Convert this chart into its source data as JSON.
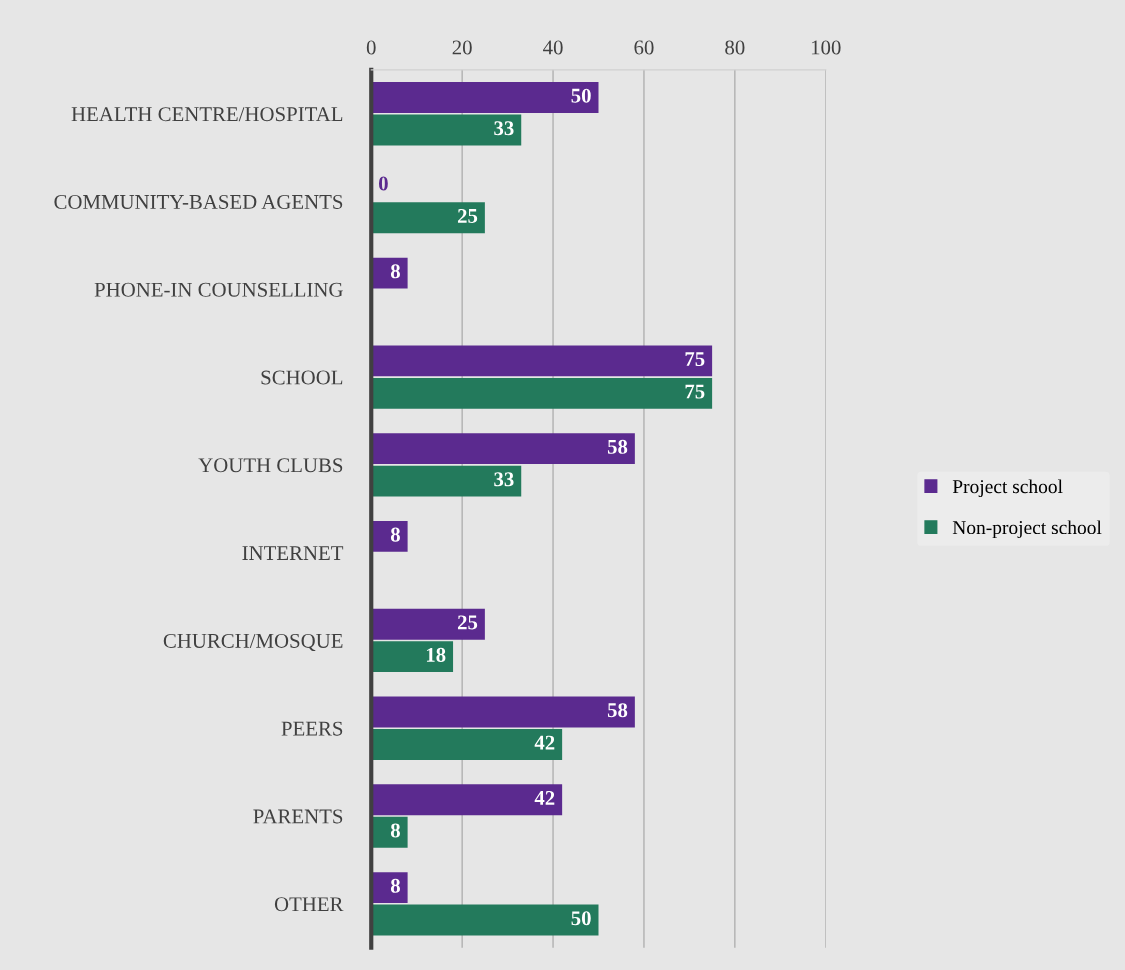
{
  "chart_data": {
    "type": "bar",
    "orientation": "horizontal",
    "categories": [
      "HEALTH CENTRE/HOSPITAL",
      "COMMUNITY-BASED AGENTS",
      "PHONE-IN COUNSELLING",
      "SCHOOL",
      "YOUTH CLUBS",
      "INTERNET",
      "CHURCH/MOSQUE",
      "PEERS",
      "PARENTS",
      "OTHER"
    ],
    "series": [
      {
        "name": "Project school",
        "color": "#5b2a8f",
        "values": [
          50,
          0,
          8,
          75,
          58,
          8,
          25,
          58,
          42,
          8
        ]
      },
      {
        "name": "Non-project school",
        "color": "#237a5c",
        "values": [
          33,
          25,
          null,
          75,
          33,
          null,
          18,
          42,
          8,
          50
        ]
      }
    ],
    "xlim": [
      0,
      100
    ],
    "xticks": [
      0,
      20,
      40,
      60,
      80,
      100
    ],
    "grid": "x",
    "data_labels": true,
    "legend": "right"
  }
}
